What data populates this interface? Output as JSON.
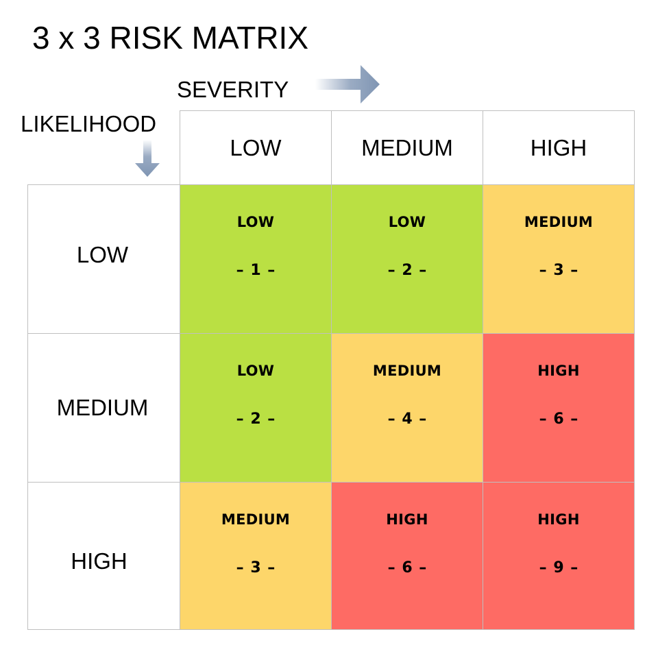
{
  "title": "3 x 3 RISK MATRIX",
  "axes": {
    "severity_label": "SEVERITY",
    "likelihood_label": "LIKELIHOOD",
    "severity_arrow_icon": "arrow-right-icon",
    "likelihood_arrow_icon": "arrow-down-icon"
  },
  "colors": {
    "low": "#bae043",
    "medium": "#fdd66a",
    "high": "#fe6b64",
    "border": "#bfbfbf",
    "arrow": "#8096b4"
  },
  "severity": [
    "LOW",
    "MEDIUM",
    "HIGH"
  ],
  "likelihood": [
    "LOW",
    "MEDIUM",
    "HIGH"
  ],
  "matrix": [
    [
      {
        "level": "LOW",
        "score": "– 1 –"
      },
      {
        "level": "LOW",
        "score": "– 2 –"
      },
      {
        "level": "MEDIUM",
        "score": "– 3 –"
      }
    ],
    [
      {
        "level": "LOW",
        "score": "– 2 –"
      },
      {
        "level": "MEDIUM",
        "score": "– 4 –"
      },
      {
        "level": "HIGH",
        "score": "– 6 –"
      }
    ],
    [
      {
        "level": "MEDIUM",
        "score": "– 3 –"
      },
      {
        "level": "HIGH",
        "score": "– 6 –"
      },
      {
        "level": "HIGH",
        "score": "– 9 –"
      }
    ]
  ]
}
